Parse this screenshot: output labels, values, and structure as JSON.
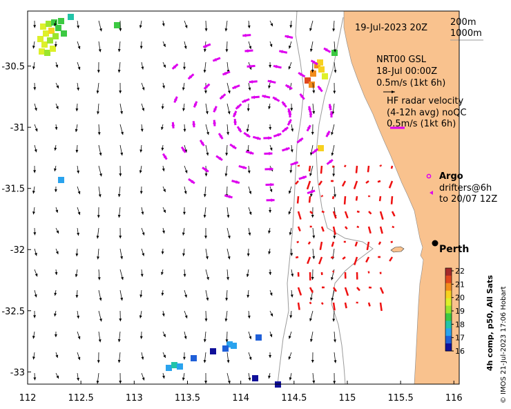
{
  "map": {
    "date": "19-Jul-2023 20Z",
    "depth_contours": [
      "200m",
      "1000m"
    ],
    "nrt_title": "NRT00 GSL",
    "nrt_time": "18-Jul 00:00Z",
    "nrt_scale": "0.5m/s (1kt 6h)",
    "hf_title": "HF radar velocity",
    "hf_subtitle": "(4-12h avg) noQC",
    "hf_scale": "0.5m/s (1kt 6h)",
    "argo_label": "Argo",
    "drifters_label": "drifters@6h",
    "drifters_until": "to 20/07 12Z",
    "city": "Perth",
    "credit": "© IMOS 21-Jul-2023 17:06 Hobart",
    "sst_title": "4h comp, p50, All Sats",
    "lon_range": [
      112,
      116.05
    ],
    "lat_range": [
      -33.1,
      -30.05
    ],
    "x_ticks": [
      {
        "v": 112,
        "label": "112"
      },
      {
        "v": 112.5,
        "label": "112.5"
      },
      {
        "v": 113,
        "label": "113"
      },
      {
        "v": 113.5,
        "label": "113.5"
      },
      {
        "v": 114,
        "label": "114"
      },
      {
        "v": 114.5,
        "label": "114.5"
      },
      {
        "v": 115,
        "label": "115"
      },
      {
        "v": 115.5,
        "label": "115.5"
      },
      {
        "v": 116,
        "label": "116"
      }
    ],
    "y_ticks": [
      {
        "v": -30.5,
        "label": "-30.5"
      },
      {
        "v": -31,
        "label": "-31"
      },
      {
        "v": -31.5,
        "label": "-31.5"
      },
      {
        "v": -32,
        "label": "-32"
      },
      {
        "v": -32.5,
        "label": "-32.5"
      },
      {
        "v": -33,
        "label": "-33"
      }
    ],
    "colorbar": {
      "min": 16,
      "max": 22,
      "ticks": [
        "22",
        "21",
        "20",
        "19",
        "18",
        "17",
        "16"
      ],
      "colors": [
        "#a52a2a",
        "#e0471e",
        "#f28c1c",
        "#f7d11f",
        "#ddf02a",
        "#9be52e",
        "#3cc942",
        "#22c4a8",
        "#2aa3ee",
        "#1f5fd8",
        "#10109a"
      ]
    },
    "colors": {
      "land": "#f9c28e",
      "radar": "#ee1111",
      "model": "#000000",
      "drifter": "#dd00ee"
    }
  }
}
